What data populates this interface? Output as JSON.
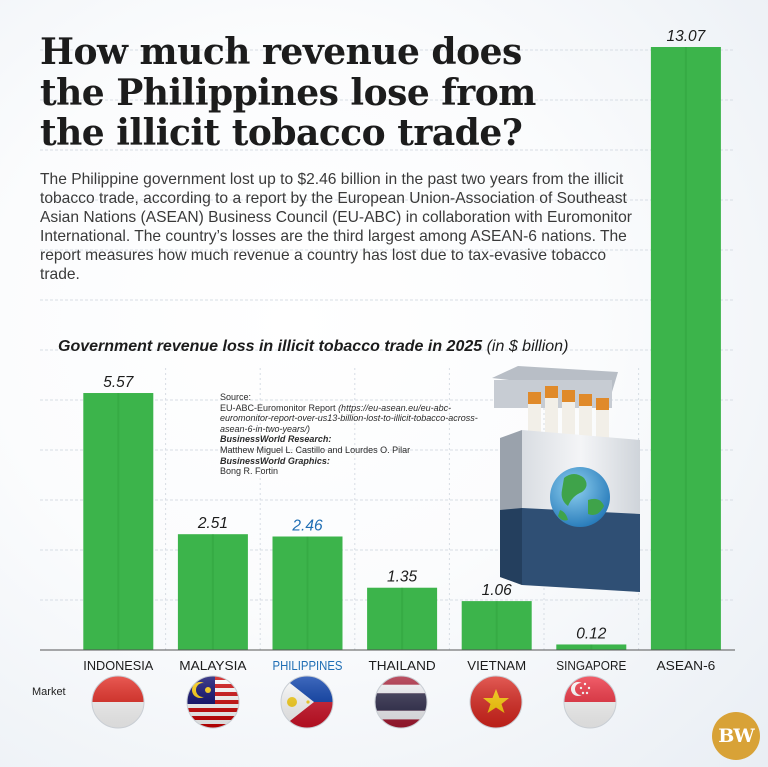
{
  "title": "How much revenue does the Philippines lose from the illicit tobacco trade?",
  "description": "The Philippine government lost up to $2.46 billion in the past two years from the illicit tobacco trade, according to a report by the European Union-Association of Southeast Asian Nations (ASEAN) Business Council (EU-ABC) in collaboration with Euromonitor International. The country’s losses are the third largest among ASEAN-6 nations. The report measures how much revenue a country has lost due to tax-evasive tobacco trade.",
  "subtitle": "Government revenue loss in illicit tobacco trade in 2025",
  "subtitle_unit": "(in $ billion)",
  "x_axis_label": "Market",
  "source": {
    "source_label": "Source:",
    "source_text": "EU-ABC-Euromonitor Report",
    "source_url": "(https://eu-asean.eu/eu-abc-euromonitor-report-over-us13-billion-lost-to-illicit-tobacco-across-asean-6-in-two-years/)",
    "research_label": "BusinessWorld Research:",
    "research_text": "Matthew Miguel L. Castillo and Lourdes O. Pilar",
    "graphics_label": "BusinessWorld Graphics:",
    "graphics_text": "Bong R. Fortin"
  },
  "logo": "BW",
  "colors": {
    "bar": "#3cb44b",
    "bar_dark": "#2a9c3a",
    "highlight_text": "#1f6eb4",
    "text": "#1c1c1c"
  },
  "icons": [
    "indonesia-flag-icon",
    "malaysia-flag-icon",
    "philippines-flag-icon",
    "thailand-flag-icon",
    "vietnam-flag-icon",
    "singapore-flag-icon",
    "cigarette-pack-globe-icon"
  ],
  "chart_data": {
    "type": "bar",
    "title": "Government revenue loss in illicit tobacco trade in 2025",
    "xlabel": "Market",
    "ylabel": "",
    "categories": [
      "INDONESIA",
      "MALAYSIA",
      "PHILIPPINES",
      "THAILAND",
      "VIETNAM",
      "SINGAPORE",
      "ASEAN-6"
    ],
    "values": [
      5.57,
      2.51,
      2.46,
      1.35,
      1.06,
      0.12,
      13.07
    ],
    "value_labels": [
      "5.57",
      "2.51",
      "2.46",
      "1.35",
      "1.06",
      "0.12",
      "13.07"
    ],
    "highlight": "PHILIPPINES",
    "ylim": [
      0,
      13.07
    ],
    "grid": true,
    "legend": "none"
  }
}
